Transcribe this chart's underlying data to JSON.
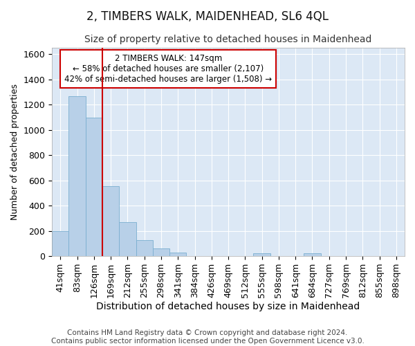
{
  "title": "2, TIMBERS WALK, MAIDENHEAD, SL6 4QL",
  "subtitle": "Size of property relative to detached houses in Maidenhead",
  "xlabel": "Distribution of detached houses by size in Maidenhead",
  "ylabel": "Number of detached properties",
  "categories": [
    "41sqm",
    "83sqm",
    "126sqm",
    "169sqm",
    "212sqm",
    "255sqm",
    "298sqm",
    "341sqm",
    "384sqm",
    "426sqm",
    "469sqm",
    "512sqm",
    "555sqm",
    "598sqm",
    "641sqm",
    "684sqm",
    "727sqm",
    "769sqm",
    "812sqm",
    "855sqm",
    "898sqm"
  ],
  "values": [
    200,
    1270,
    1095,
    555,
    270,
    125,
    60,
    30,
    0,
    0,
    0,
    0,
    20,
    0,
    0,
    20,
    0,
    0,
    0,
    0,
    0
  ],
  "bar_color": "#b8d0e8",
  "bar_edge_color": "#7aaed0",
  "property_line_color": "#cc0000",
  "property_line_index": 2.5,
  "annotation_text": "2 TIMBERS WALK: 147sqm\n← 58% of detached houses are smaller (2,107)\n42% of semi-detached houses are larger (1,508) →",
  "annotation_box_facecolor": "#ffffff",
  "annotation_box_edgecolor": "#cc0000",
  "ylim": [
    0,
    1650
  ],
  "yticks": [
    0,
    200,
    400,
    600,
    800,
    1000,
    1200,
    1400,
    1600
  ],
  "plot_bg_color": "#dce8f5",
  "fig_bg_color": "#ffffff",
  "grid_color": "#ffffff",
  "title_fontsize": 12,
  "subtitle_fontsize": 10,
  "xlabel_fontsize": 10,
  "ylabel_fontsize": 9,
  "tick_fontsize": 9,
  "annotation_fontsize": 8.5,
  "footer_text": "Contains HM Land Registry data © Crown copyright and database right 2024.\nContains public sector information licensed under the Open Government Licence v3.0.",
  "footer_fontsize": 7.5
}
